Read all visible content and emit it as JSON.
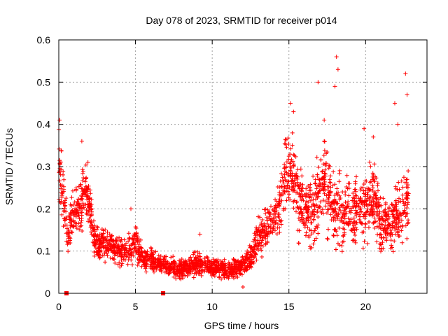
{
  "chart_data": {
    "type": "scatter",
    "title": "Day 078 of 2023, SRMTID for receiver p014",
    "xlabel": "GPS time / hours",
    "ylabel": "SRMTID / TECUs",
    "xlim": [
      0,
      24
    ],
    "ylim": [
      0,
      0.6
    ],
    "xticks": [
      0,
      5,
      10,
      15,
      20
    ],
    "xtick_labels": [
      "0",
      "5",
      "10",
      "15",
      "20"
    ],
    "yticks": [
      0,
      0.1,
      0.2,
      0.3,
      0.4,
      0.5,
      0.6
    ],
    "ytick_labels": [
      "0",
      "0.1",
      "0.2",
      "0.3",
      "0.4",
      "0.5",
      "0.6"
    ],
    "grid": true,
    "series_color": "#ff0000",
    "marker": "+",
    "gap_markers": {
      "x": [
        0.5,
        6.8
      ],
      "y": 0,
      "marker": "square"
    },
    "series": [
      {
        "name": "SRMTID",
        "envelope_x": [
          0.0,
          0.1,
          0.2,
          0.4,
          0.6,
          0.8,
          1.0,
          1.2,
          1.4,
          1.6,
          1.8,
          2.0,
          2.3,
          2.6,
          3.0,
          3.5,
          4.0,
          4.5,
          5.0,
          5.5,
          6.0,
          6.5,
          7.0,
          7.5,
          8.0,
          8.5,
          9.0,
          9.5,
          10.0,
          10.5,
          11.0,
          11.5,
          12.0,
          12.5,
          13.0,
          13.5,
          14.0,
          14.5,
          14.8,
          15.0,
          15.3,
          15.6,
          16.0,
          16.5,
          17.0,
          17.3,
          17.6,
          18.0,
          18.2,
          18.5,
          19.0,
          19.5,
          20.0,
          20.3,
          20.5,
          20.8,
          21.0,
          21.3,
          21.6,
          22.0,
          22.3,
          22.6,
          22.8
        ],
        "envelope_mean": [
          0.28,
          0.3,
          0.24,
          0.2,
          0.14,
          0.17,
          0.2,
          0.19,
          0.21,
          0.25,
          0.24,
          0.21,
          0.13,
          0.11,
          0.12,
          0.11,
          0.1,
          0.1,
          0.12,
          0.08,
          0.08,
          0.07,
          0.065,
          0.06,
          0.06,
          0.065,
          0.07,
          0.065,
          0.06,
          0.06,
          0.055,
          0.06,
          0.065,
          0.08,
          0.13,
          0.15,
          0.17,
          0.22,
          0.27,
          0.3,
          0.28,
          0.22,
          0.2,
          0.19,
          0.24,
          0.27,
          0.23,
          0.2,
          0.22,
          0.18,
          0.2,
          0.19,
          0.21,
          0.22,
          0.23,
          0.2,
          0.15,
          0.17,
          0.17,
          0.18,
          0.2,
          0.22,
          0.23
        ],
        "envelope_spread": [
          0.08,
          0.09,
          0.07,
          0.05,
          0.04,
          0.05,
          0.05,
          0.05,
          0.06,
          0.06,
          0.05,
          0.05,
          0.035,
          0.03,
          0.035,
          0.03,
          0.03,
          0.03,
          0.04,
          0.025,
          0.025,
          0.02,
          0.02,
          0.02,
          0.02,
          0.02,
          0.025,
          0.02,
          0.02,
          0.02,
          0.02,
          0.02,
          0.02,
          0.025,
          0.035,
          0.04,
          0.045,
          0.06,
          0.07,
          0.08,
          0.08,
          0.07,
          0.06,
          0.07,
          0.08,
          0.09,
          0.08,
          0.07,
          0.09,
          0.06,
          0.07,
          0.06,
          0.07,
          0.07,
          0.07,
          0.06,
          0.05,
          0.06,
          0.06,
          0.06,
          0.07,
          0.07,
          0.07
        ],
        "peaks": [
          {
            "x": 0.05,
            "y": 0.41
          },
          {
            "x": 1.5,
            "y": 0.36
          },
          {
            "x": 1.9,
            "y": 0.31
          },
          {
            "x": 4.7,
            "y": 0.2
          },
          {
            "x": 9.2,
            "y": 0.14
          },
          {
            "x": 15.1,
            "y": 0.45
          },
          {
            "x": 15.3,
            "y": 0.43
          },
          {
            "x": 16.9,
            "y": 0.5
          },
          {
            "x": 17.3,
            "y": 0.41
          },
          {
            "x": 18.1,
            "y": 0.56
          },
          {
            "x": 18.2,
            "y": 0.53
          },
          {
            "x": 18.0,
            "y": 0.49
          },
          {
            "x": 19.9,
            "y": 0.39
          },
          {
            "x": 20.5,
            "y": 0.37
          },
          {
            "x": 21.9,
            "y": 0.45
          },
          {
            "x": 22.1,
            "y": 0.4
          },
          {
            "x": 22.6,
            "y": 0.52
          },
          {
            "x": 22.7,
            "y": 0.47
          },
          {
            "x": 12.0,
            "y": 0.015
          },
          {
            "x": 13.1,
            "y": 0.18
          }
        ]
      }
    ]
  }
}
